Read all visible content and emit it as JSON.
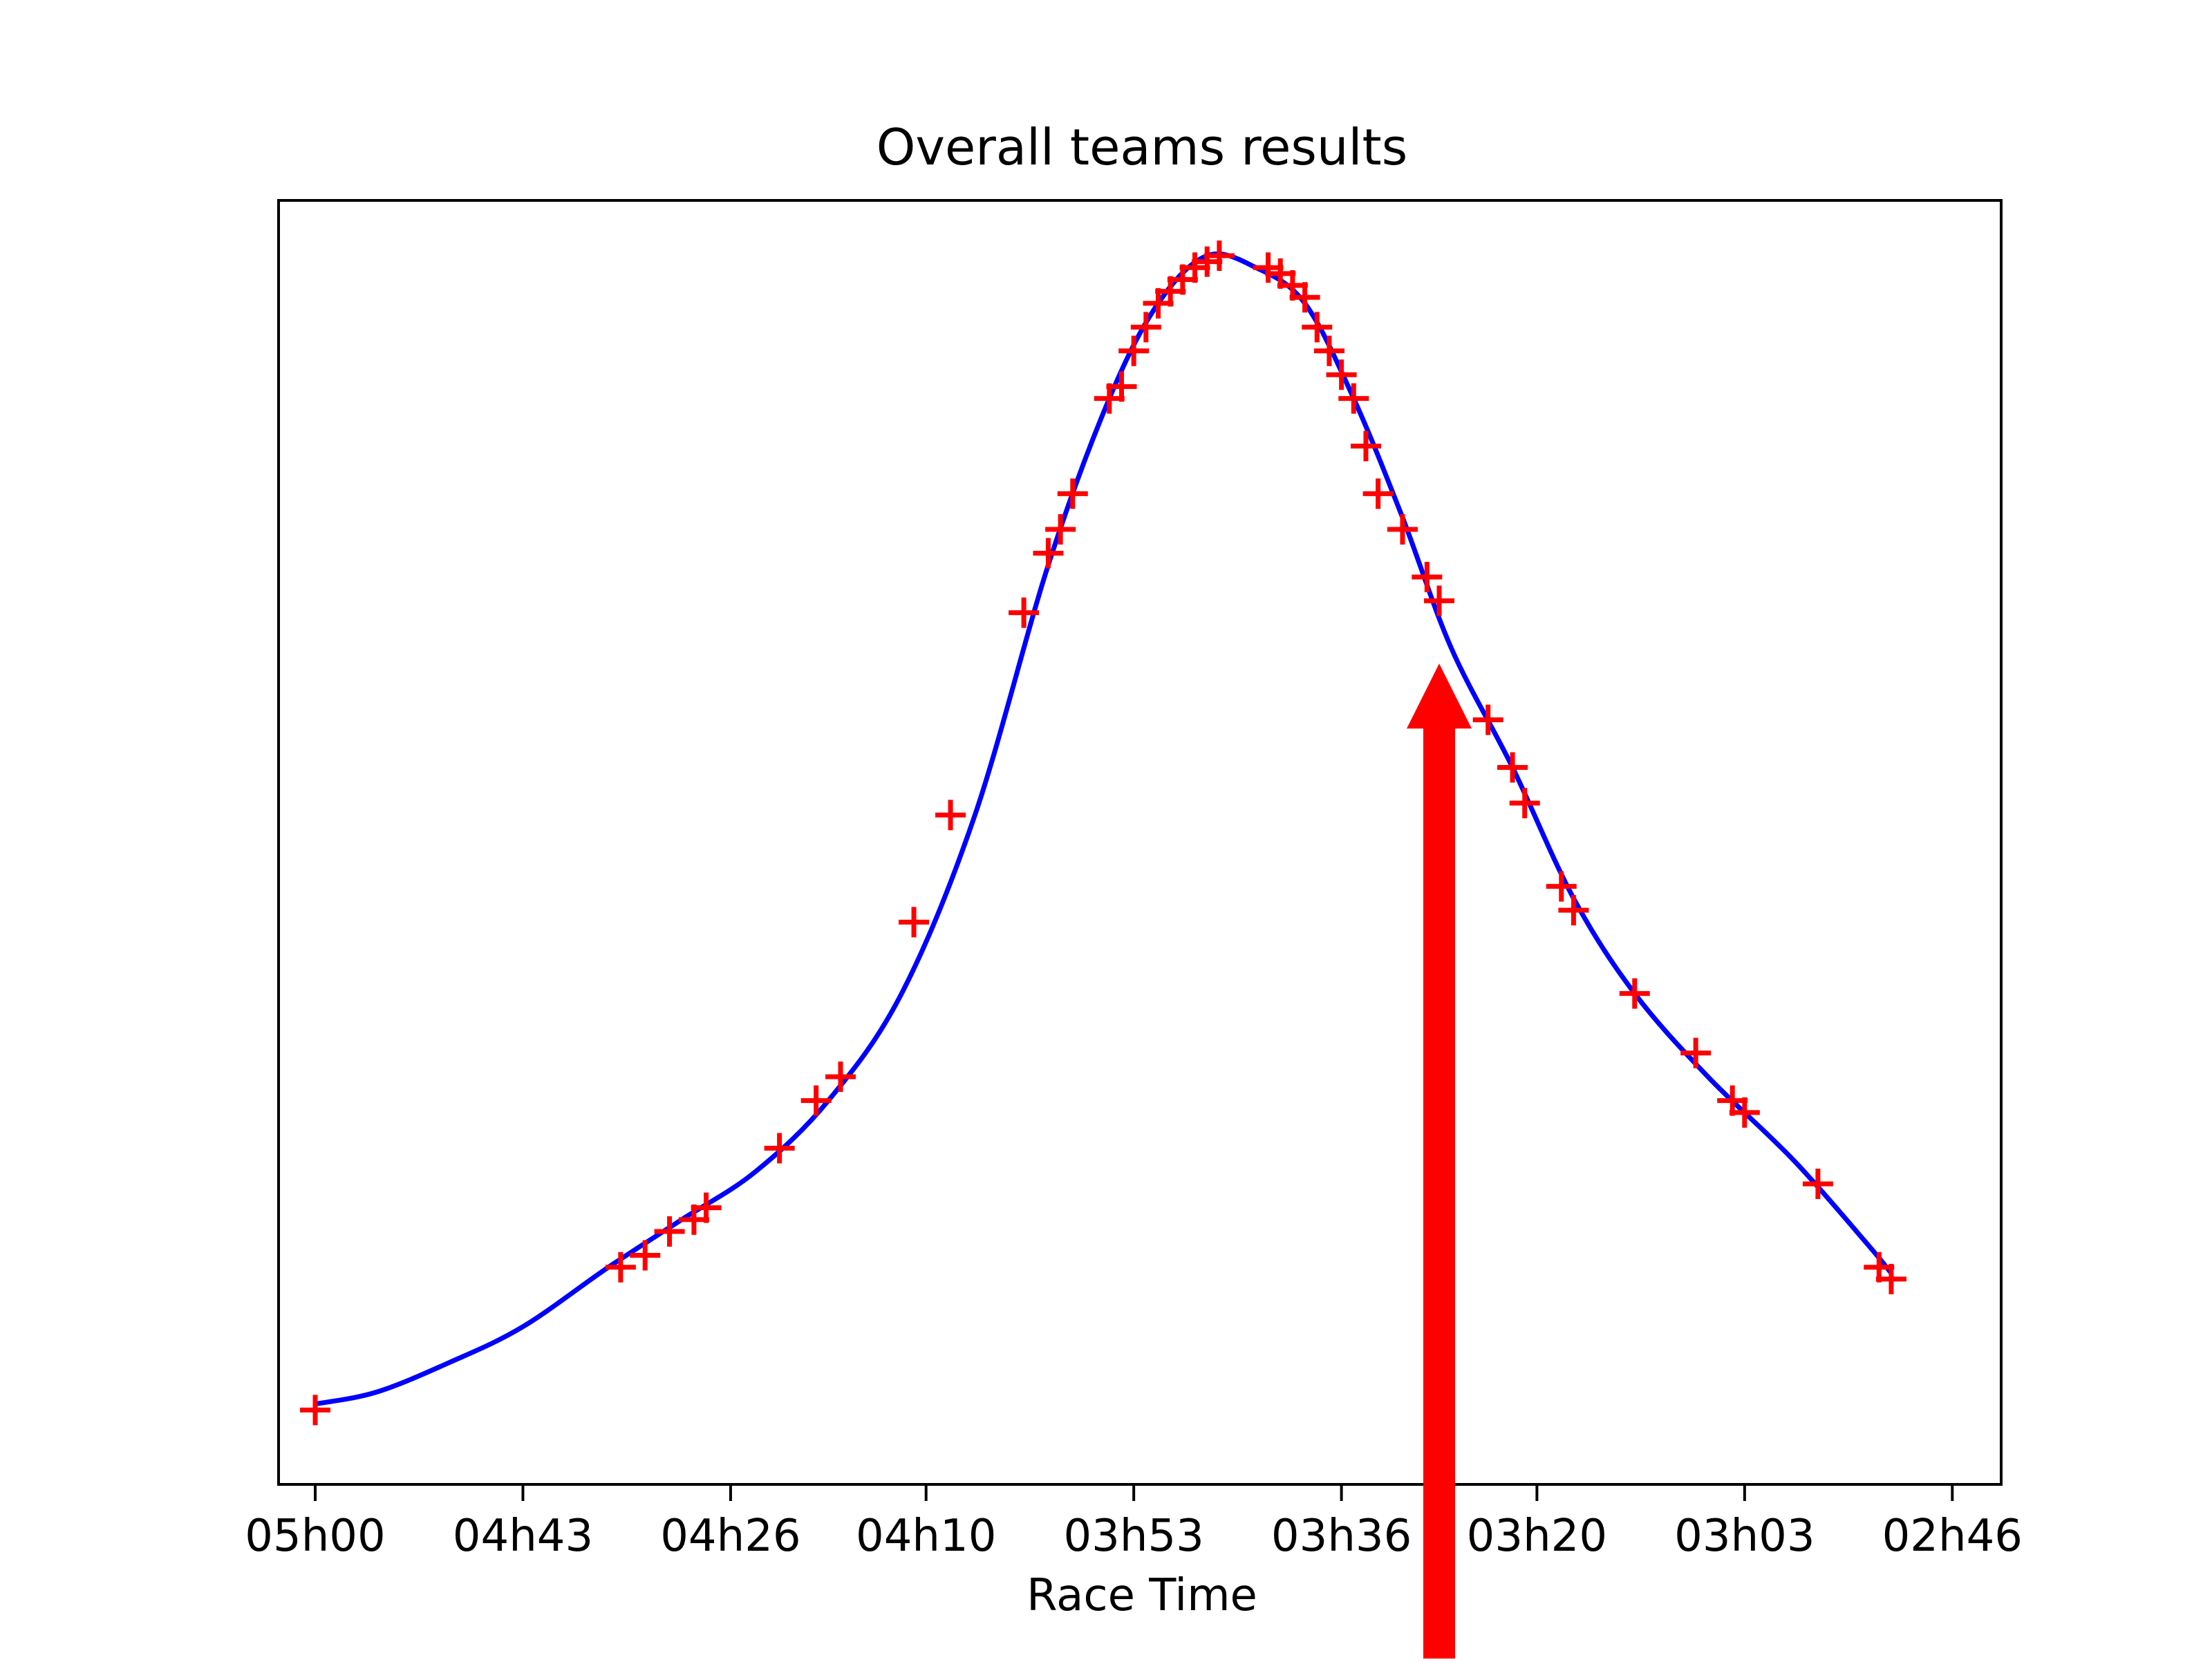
{
  "chart_data": {
    "type": "scatter",
    "title": "Overall teams results",
    "xlabel": "Race Time",
    "ylabel": "",
    "x_axis_direction": "reversed",
    "xlim": [
      "05h03",
      "02h42"
    ],
    "x_ticks": [
      "05h00",
      "04h43",
      "04h26",
      "04h10",
      "03h53",
      "03h36",
      "03h20",
      "03h03",
      "02h46"
    ],
    "y_axis_labels_shown": false,
    "grid": false,
    "legend": "none",
    "series": [
      {
        "kind": "marker",
        "marker": "+",
        "color": "#ff0000",
        "points": [
          [
            "05h00",
            0.03
          ],
          [
            "04h35",
            0.15
          ],
          [
            "04h33",
            0.16
          ],
          [
            "04h31",
            0.18
          ],
          [
            "04h29",
            0.19
          ],
          [
            "04h28",
            0.2
          ],
          [
            "04h22",
            0.25
          ],
          [
            "04h19",
            0.29
          ],
          [
            "04h17",
            0.31
          ],
          [
            "04h11",
            0.44
          ],
          [
            "04h08",
            0.53
          ],
          [
            "04h02",
            0.7
          ],
          [
            "04h00",
            0.75
          ],
          [
            "03h59",
            0.77
          ],
          [
            "03h58",
            0.8
          ],
          [
            "03h55",
            0.88
          ],
          [
            "03h54",
            0.89
          ],
          [
            "03h53",
            0.92
          ],
          [
            "03h52",
            0.94
          ],
          [
            "03h51",
            0.96
          ],
          [
            "03h50",
            0.97
          ],
          [
            "03h49",
            0.98
          ],
          [
            "03h48",
            0.99
          ],
          [
            "03h47",
            0.995
          ],
          [
            "03h46",
            1.0
          ],
          [
            "03h42",
            0.99
          ],
          [
            "03h41",
            0.985
          ],
          [
            "03h40",
            0.975
          ],
          [
            "03h39",
            0.965
          ],
          [
            "03h38",
            0.94
          ],
          [
            "03h37",
            0.92
          ],
          [
            "03h36",
            0.9
          ],
          [
            "03h35",
            0.88
          ],
          [
            "03h34",
            0.84
          ],
          [
            "03h33",
            0.8
          ],
          [
            "03h31",
            0.77
          ],
          [
            "03h29",
            0.73
          ],
          [
            "03h28",
            0.71
          ],
          [
            "03h24",
            0.61
          ],
          [
            "03h22",
            0.57
          ],
          [
            "03h21",
            0.54
          ],
          [
            "03h18",
            0.47
          ],
          [
            "03h17",
            0.45
          ],
          [
            "03h12",
            0.38
          ],
          [
            "03h07",
            0.33
          ],
          [
            "03h04",
            0.29
          ],
          [
            "03h03",
            0.28
          ],
          [
            "02h57",
            0.22
          ],
          [
            "02h52",
            0.15
          ],
          [
            "02h51",
            0.14
          ]
        ]
      },
      {
        "kind": "line",
        "color": "#0000ff",
        "points": [
          [
            "05h00",
            0.035
          ],
          [
            "04h55",
            0.045
          ],
          [
            "04h49",
            0.07
          ],
          [
            "04h43",
            0.1
          ],
          [
            "04h36",
            0.15
          ],
          [
            "04h30",
            0.19
          ],
          [
            "04h24",
            0.23
          ],
          [
            "04h18",
            0.29
          ],
          [
            "04h12",
            0.38
          ],
          [
            "04h06",
            0.53
          ],
          [
            "04h00",
            0.74
          ],
          [
            "03h55",
            0.88
          ],
          [
            "03h51",
            0.96
          ],
          [
            "03h47",
            1.0
          ],
          [
            "03h43",
            0.99
          ],
          [
            "03h39",
            0.96
          ],
          [
            "03h35",
            0.88
          ],
          [
            "03h31",
            0.78
          ],
          [
            "03h27",
            0.67
          ],
          [
            "03h22",
            0.57
          ],
          [
            "03h17",
            0.46
          ],
          [
            "03h12",
            0.38
          ],
          [
            "03h06",
            0.31
          ],
          [
            "02h59",
            0.24
          ],
          [
            "02h53",
            0.17
          ],
          [
            "02h51",
            0.145
          ]
        ]
      }
    ],
    "annotations": [
      {
        "type": "arrow",
        "color": "#ff0000",
        "direction": "up",
        "x": "03h28",
        "from": "below-chart",
        "to_y": 0.67
      }
    ]
  }
}
